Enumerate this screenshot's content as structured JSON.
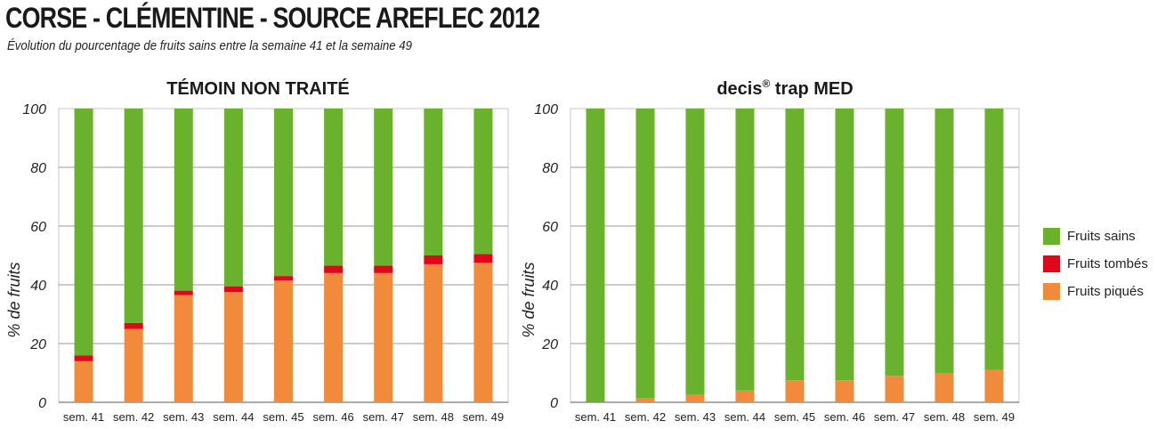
{
  "header": {
    "title": "CORSE - CLÉMENTINE - SOURCE AREFLEC 2012",
    "subtitle": "Évolution du pourcentage de fruits sains entre la semaine 41 et la semaine 49"
  },
  "colors": {
    "fruits_sains": "#6ab22e",
    "fruits_tombes": "#e1071b",
    "fruits_piques": "#f28a3c",
    "grid": "#9a9a9a"
  },
  "legend": [
    {
      "label": "Fruits sains",
      "color": "#6ab22e"
    },
    {
      "label": "Fruits tombés",
      "color": "#e1071b"
    },
    {
      "label": "Fruits piqués",
      "color": "#f28a3c"
    }
  ],
  "chart_data": [
    {
      "type": "bar",
      "stacked": true,
      "title": "TÉMOIN NON TRAITÉ",
      "title_sup": "",
      "title_suffix": "",
      "xlabel": "",
      "ylabel": "% de fruits",
      "ylim": [
        0,
        100
      ],
      "yticks": [
        0,
        20,
        40,
        60,
        80,
        100
      ],
      "grid": true,
      "categories": [
        "sem. 41",
        "sem. 42",
        "sem. 43",
        "sem. 44",
        "sem. 45",
        "sem. 46",
        "sem. 47",
        "sem. 48",
        "sem. 49"
      ],
      "series": [
        {
          "name": "Fruits piqués",
          "values": [
            14,
            25,
            36.5,
            37.5,
            41.5,
            44,
            44,
            47,
            47.5
          ]
        },
        {
          "name": "Fruits tombés",
          "values": [
            2,
            2,
            1.5,
            2,
            1.5,
            2.5,
            2.5,
            3,
            3
          ]
        },
        {
          "name": "Fruits sains",
          "values": [
            84,
            73,
            62,
            60.5,
            57,
            53.5,
            53.5,
            50,
            49.5
          ]
        }
      ]
    },
    {
      "type": "bar",
      "stacked": true,
      "title": "decis",
      "title_sup": "®",
      "title_suffix": " trap MED",
      "xlabel": "",
      "ylabel": "% de fruits",
      "ylim": [
        0,
        100
      ],
      "yticks": [
        0,
        20,
        40,
        60,
        80,
        100
      ],
      "grid": true,
      "categories": [
        "sem. 41",
        "sem. 42",
        "sem. 43",
        "sem. 44",
        "sem. 45",
        "sem. 46",
        "sem. 47",
        "sem. 48",
        "sem. 49"
      ],
      "series": [
        {
          "name": "Fruits piqués",
          "values": [
            0,
            1.5,
            2.5,
            4,
            7.5,
            7.5,
            9,
            10,
            11
          ]
        },
        {
          "name": "Fruits tombés",
          "values": [
            0,
            0,
            0,
            0,
            0,
            0,
            0,
            0,
            0
          ]
        },
        {
          "name": "Fruits sains",
          "values": [
            100,
            98.5,
            97.5,
            96,
            92.5,
            92.5,
            91,
            90,
            89
          ]
        }
      ]
    }
  ]
}
